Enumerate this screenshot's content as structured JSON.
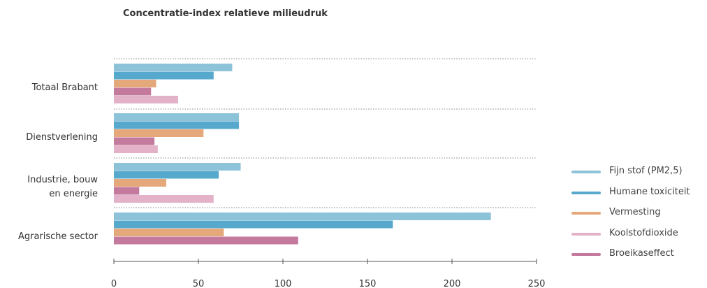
{
  "chart_data": {
    "type": "bar",
    "orientation": "horizontal",
    "title": "Concentratie-index relatieve milieudruk",
    "categories": [
      "Totaal Brabant",
      "Dienstverlening",
      "Industrie, bouw en energie",
      "Agrarische sector"
    ],
    "category_lines": [
      [
        "Totaal Brabant"
      ],
      [
        "Dienstverlening"
      ],
      [
        "Industrie, bouw",
        "en energie"
      ],
      [
        "Agrarische sector"
      ]
    ],
    "series": [
      {
        "name": "Fijn stof (PM2,5)",
        "color": "#8cc3d8",
        "values": [
          70,
          74,
          75,
          223
        ]
      },
      {
        "name": "Humane toxiciteit",
        "color": "#56a9cc",
        "values": [
          59,
          74,
          62,
          165
        ]
      },
      {
        "name": "Vermesting",
        "color": "#e5a87a",
        "values": [
          25,
          53,
          31,
          65
        ]
      },
      {
        "name": "Broeikaseffect",
        "color": "#c47a9d",
        "values": [
          22,
          24,
          15,
          109
        ]
      },
      {
        "name": "Koolstofdioxide",
        "color": "#e3b2c9",
        "values": [
          38,
          26,
          59,
          null
        ]
      }
    ],
    "legend": {
      "position": "right",
      "entries": [
        {
          "label": "Fijn stof (PM2,5)",
          "color": "#8cc3d8"
        },
        {
          "label": "Humane toxiciteit",
          "color": "#56a9cc"
        },
        {
          "label": "Vermesting",
          "color": "#e5a87a"
        },
        {
          "label": "Koolstofdioxide",
          "color": "#e3b2c9"
        },
        {
          "label": "Broeikaseffect",
          "color": "#c47a9d"
        }
      ]
    },
    "xlim": [
      0,
      250
    ],
    "xticks": [
      0,
      50,
      100,
      150,
      200,
      250
    ],
    "grid": "dotted separators between categories",
    "axis_color": "#555555"
  }
}
